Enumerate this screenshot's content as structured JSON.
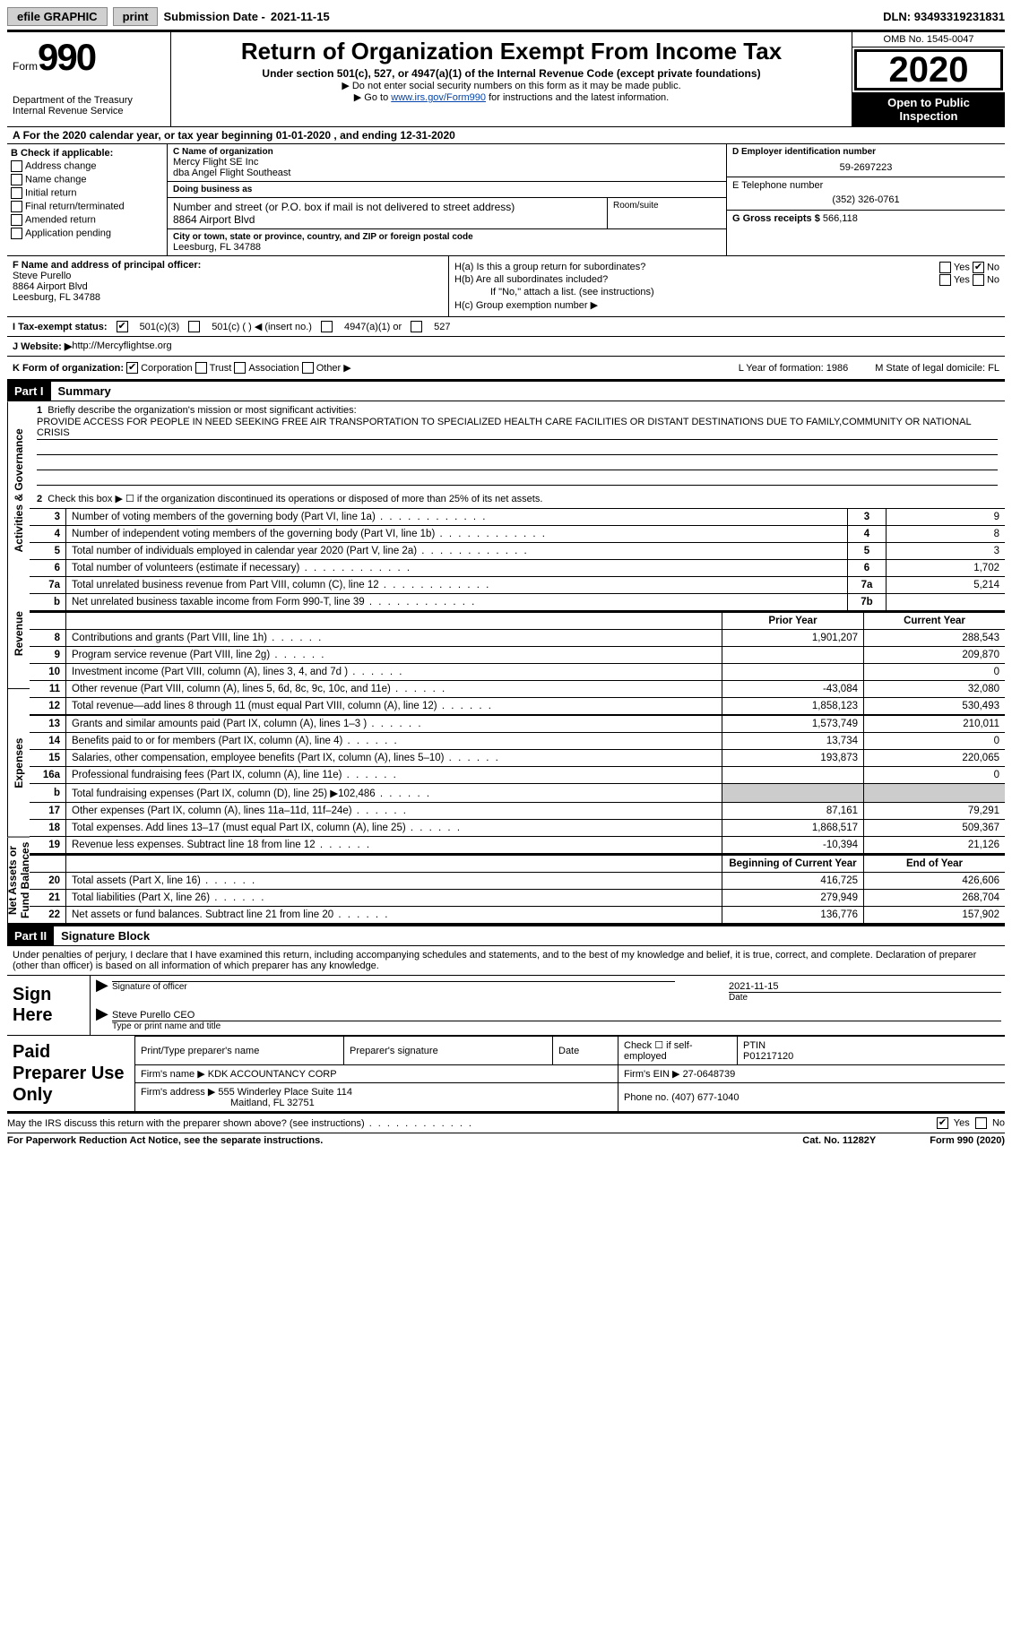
{
  "topbar": {
    "efile": "efile GRAPHIC",
    "print": "print",
    "submission_label": "Submission Date - ",
    "submission_date": "2021-11-15",
    "dln_label": "DLN: ",
    "dln": "93493319231831"
  },
  "header": {
    "form_word": "Form",
    "form_num": "990",
    "dept1": "Department of the Treasury",
    "dept2": "Internal Revenue Service",
    "title": "Return of Organization Exempt From Income Tax",
    "subtitle": "Under section 501(c), 527, or 4947(a)(1) of the Internal Revenue Code (except private foundations)",
    "line1": "Do not enter social security numbers on this form as it may be made public.",
    "line2_pre": "Go to ",
    "line2_link": "www.irs.gov/Form990",
    "line2_post": " for instructions and the latest information.",
    "omb": "OMB No. 1545-0047",
    "year": "2020",
    "inspect1": "Open to Public",
    "inspect2": "Inspection"
  },
  "period": {
    "a": "A",
    "text": "For the 2020 calendar year, or tax year beginning 01-01-2020   , and ending 12-31-2020"
  },
  "boxB": {
    "label": "B Check if applicable:",
    "opts": [
      "Address change",
      "Name change",
      "Initial return",
      "Final return/terminated",
      "Amended return",
      "Application pending"
    ]
  },
  "boxC": {
    "name_label": "C Name of organization",
    "name1": "Mercy Flight SE Inc",
    "name2": "dba Angel Flight Southeast",
    "dba_label": "Doing business as",
    "addr_label": "Number and street (or P.O. box if mail is not delivered to street address)",
    "room_label": "Room/suite",
    "addr": "8864 Airport Blvd",
    "city_label": "City or town, state or province, country, and ZIP or foreign postal code",
    "city": "Leesburg, FL  34788"
  },
  "boxD": {
    "label": "D Employer identification number",
    "value": "59-2697223"
  },
  "boxE": {
    "label": "E Telephone number",
    "value": "(352) 326-0761"
  },
  "boxG": {
    "label": "G Gross receipts $ ",
    "value": "566,118"
  },
  "boxF": {
    "label": "F  Name and address of principal officer:",
    "name": "Steve Purello",
    "addr1": "8864 Airport Blvd",
    "addr2": "Leesburg, FL  34788"
  },
  "boxH": {
    "ha": "H(a)  Is this a group return for subordinates?",
    "hb": "H(b)  Are all subordinates included?",
    "hb_note": "If \"No,\" attach a list. (see instructions)",
    "hc": "H(c)  Group exemption number ▶",
    "yes": "Yes",
    "no": "No"
  },
  "statusI": {
    "label": "I   Tax-exempt status:",
    "o1": "501(c)(3)",
    "o2": "501(c) (  ) ◀ (insert no.)",
    "o3": "4947(a)(1) or",
    "o4": "527"
  },
  "boxJ": {
    "label": "J   Website: ▶  ",
    "value": "http://Mercyflightse.org"
  },
  "boxK": {
    "label": "K Form of organization:",
    "o1": "Corporation",
    "o2": "Trust",
    "o3": "Association",
    "o4": "Other ▶",
    "L": "L Year of formation: 1986",
    "M": "M State of legal domicile: FL"
  },
  "part1": {
    "header": "Part I",
    "title": "Summary",
    "q1": "Briefly describe the organization's mission or most significant activities:",
    "mission": "PROVIDE ACCESS FOR PEOPLE IN NEED SEEKING FREE AIR TRANSPORTATION TO SPECIALIZED HEALTH CARE FACILITIES OR DISTANT DESTINATIONS DUE TO FAMILY,COMMUNITY OR NATIONAL CRISIS",
    "q2": "Check this box ▶ ☐  if the organization discontinued its operations or disposed of more than 25% of its net assets.",
    "side1": "Activities & Governance",
    "side2": "Revenue",
    "side3": "Expenses",
    "side4": "Net Assets or Fund Balances",
    "prior_hdr": "Prior Year",
    "curr_hdr": "Current Year",
    "begin_hdr": "Beginning of Current Year",
    "end_hdr": "End of Year"
  },
  "lines_gov": [
    {
      "n": "3",
      "d": "Number of voting members of the governing body (Part VI, line 1a)",
      "box": "3",
      "v": "9"
    },
    {
      "n": "4",
      "d": "Number of independent voting members of the governing body (Part VI, line 1b)",
      "box": "4",
      "v": "8"
    },
    {
      "n": "5",
      "d": "Total number of individuals employed in calendar year 2020 (Part V, line 2a)",
      "box": "5",
      "v": "3"
    },
    {
      "n": "6",
      "d": "Total number of volunteers (estimate if necessary)",
      "box": "6",
      "v": "1,702"
    },
    {
      "n": "7a",
      "d": "Total unrelated business revenue from Part VIII, column (C), line 12",
      "box": "7a",
      "v": "5,214"
    },
    {
      "n": "b",
      "d": "Net unrelated business taxable income from Form 990-T, line 39",
      "box": "7b",
      "v": ""
    }
  ],
  "lines_rev": [
    {
      "n": "8",
      "d": "Contributions and grants (Part VIII, line 1h)",
      "p": "1,901,207",
      "c": "288,543"
    },
    {
      "n": "9",
      "d": "Program service revenue (Part VIII, line 2g)",
      "p": "",
      "c": "209,870"
    },
    {
      "n": "10",
      "d": "Investment income (Part VIII, column (A), lines 3, 4, and 7d )",
      "p": "",
      "c": "0"
    },
    {
      "n": "11",
      "d": "Other revenue (Part VIII, column (A), lines 5, 6d, 8c, 9c, 10c, and 11e)",
      "p": "-43,084",
      "c": "32,080"
    },
    {
      "n": "12",
      "d": "Total revenue—add lines 8 through 11 (must equal Part VIII, column (A), line 12)",
      "p": "1,858,123",
      "c": "530,493"
    }
  ],
  "lines_exp": [
    {
      "n": "13",
      "d": "Grants and similar amounts paid (Part IX, column (A), lines 1–3 )",
      "p": "1,573,749",
      "c": "210,011"
    },
    {
      "n": "14",
      "d": "Benefits paid to or for members (Part IX, column (A), line 4)",
      "p": "13,734",
      "c": "0"
    },
    {
      "n": "15",
      "d": "Salaries, other compensation, employee benefits (Part IX, column (A), lines 5–10)",
      "p": "193,873",
      "c": "220,065"
    },
    {
      "n": "16a",
      "d": "Professional fundraising fees (Part IX, column (A), line 11e)",
      "p": "",
      "c": "0"
    },
    {
      "n": "b",
      "d": "Total fundraising expenses (Part IX, column (D), line 25) ▶102,486",
      "p": "GRAY",
      "c": "GRAY"
    },
    {
      "n": "17",
      "d": "Other expenses (Part IX, column (A), lines 11a–11d, 11f–24e)",
      "p": "87,161",
      "c": "79,291"
    },
    {
      "n": "18",
      "d": "Total expenses. Add lines 13–17 (must equal Part IX, column (A), line 25)",
      "p": "1,868,517",
      "c": "509,367"
    },
    {
      "n": "19",
      "d": "Revenue less expenses. Subtract line 18 from line 12",
      "p": "-10,394",
      "c": "21,126"
    }
  ],
  "lines_net": [
    {
      "n": "20",
      "d": "Total assets (Part X, line 16)",
      "p": "416,725",
      "c": "426,606"
    },
    {
      "n": "21",
      "d": "Total liabilities (Part X, line 26)",
      "p": "279,949",
      "c": "268,704"
    },
    {
      "n": "22",
      "d": "Net assets or fund balances. Subtract line 21 from line 20",
      "p": "136,776",
      "c": "157,902"
    }
  ],
  "part2": {
    "header": "Part II",
    "title": "Signature Block",
    "decl": "Under penalties of perjury, I declare that I have examined this return, including accompanying schedules and statements, and to the best of my knowledge and belief, it is true, correct, and complete. Declaration of preparer (other than officer) is based on all information of which preparer has any knowledge.",
    "sign_here": "Sign Here",
    "sig_officer": "Signature of officer",
    "sig_date": "Date",
    "sig_date_val": "2021-11-15",
    "officer_name": "Steve Purello CEO",
    "type_name": "Type or print name and title",
    "paid": "Paid Preparer Use Only",
    "prep_name_label": "Print/Type preparer's name",
    "prep_sig_label": "Preparer's signature",
    "date_label": "Date",
    "self_emp": "Check ☐ if self-employed",
    "ptin_label": "PTIN",
    "ptin": "P01217120",
    "firm_name_label": "Firm's name    ▶ ",
    "firm_name": "KDK ACCOUNTANCY CORP",
    "firm_ein_label": "Firm's EIN ▶ ",
    "firm_ein": "27-0648739",
    "firm_addr_label": "Firm's address ▶ ",
    "firm_addr1": "555 Winderley Place Suite 114",
    "firm_addr2": "Maitland, FL  32751",
    "phone_label": "Phone no. ",
    "phone": "(407) 677-1040",
    "discuss": "May the IRS discuss this return with the preparer shown above? (see instructions)",
    "yes": "Yes",
    "no": "No"
  },
  "footer": {
    "pra": "For Paperwork Reduction Act Notice, see the separate instructions.",
    "cat": "Cat. No. 11282Y",
    "form": "Form 990 (2020)"
  }
}
